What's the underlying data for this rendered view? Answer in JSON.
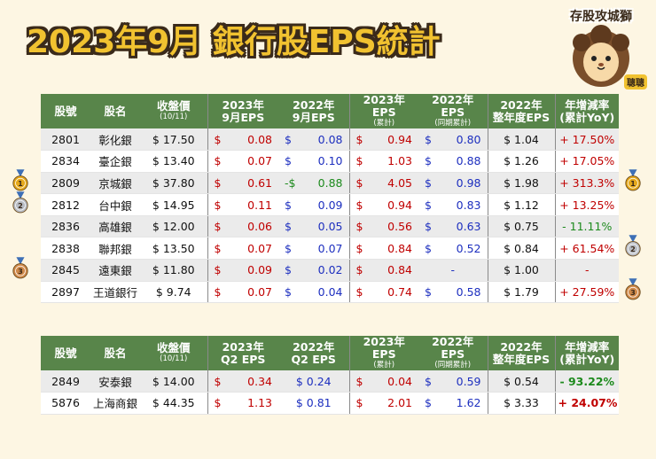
{
  "title": "2023年9月 銀行股EPS統計",
  "logo": {
    "label": "存股攻城獅",
    "name": "聰聰"
  },
  "colors": {
    "header_bg": "#58854a",
    "title_fill": "#f1c230",
    "positive": "#c00000",
    "negative": "#1d8a1d",
    "blue": "#1d2fbf"
  },
  "table1": {
    "headers": [
      {
        "main": "股號",
        "sub": ""
      },
      {
        "main": "股名",
        "sub": ""
      },
      {
        "main": "收盤價",
        "sub": "(10/11)"
      },
      {
        "main": "2023年",
        "main2": "9月EPS",
        "sub": ""
      },
      {
        "main": "2022年",
        "main2": "9月EPS",
        "sub": ""
      },
      {
        "main": "2023年EPS",
        "sub": "(累計)"
      },
      {
        "main": "2022年EPS",
        "sub": "(同期累計)"
      },
      {
        "main": "2022年",
        "main2": "整年度EPS",
        "sub": ""
      },
      {
        "main": "年增減率",
        "main2": "(累計YoY)",
        "sub": ""
      }
    ],
    "rows": [
      {
        "code": "2801",
        "name": "彰化銀",
        "price": "$ 17.50",
        "m23": [
          "$",
          "0.08"
        ],
        "m22": [
          "$",
          "0.08"
        ],
        "c23": [
          "$",
          "0.94"
        ],
        "c22": [
          "$",
          "0.80"
        ],
        "y22": "$ 1.04",
        "yoy": "+ 17.50%"
      },
      {
        "code": "2834",
        "name": "臺企銀",
        "price": "$ 13.40",
        "m23": [
          "$",
          "0.07"
        ],
        "m22": [
          "$",
          "0.10"
        ],
        "c23": [
          "$",
          "1.03"
        ],
        "c22": [
          "$",
          "0.88"
        ],
        "y22": "$ 1.26",
        "yoy": "+ 17.05%"
      },
      {
        "code": "2809",
        "name": "京城銀",
        "price": "$ 37.80",
        "m23": [
          "$",
          "0.61"
        ],
        "m22": [
          "-$",
          "0.88"
        ],
        "c23": [
          "$",
          "4.05"
        ],
        "c22": [
          "$",
          "0.98"
        ],
        "y22": "$ 1.98",
        "yoy": "+ 313.3%"
      },
      {
        "code": "2812",
        "name": "台中銀",
        "price": "$ 14.95",
        "m23": [
          "$",
          "0.11"
        ],
        "m22": [
          "$",
          "0.09"
        ],
        "c23": [
          "$",
          "0.94"
        ],
        "c22": [
          "$",
          "0.83"
        ],
        "y22": "$ 1.12",
        "yoy": "+ 13.25%"
      },
      {
        "code": "2836",
        "name": "高雄銀",
        "price": "$ 12.00",
        "m23": [
          "$",
          "0.06"
        ],
        "m22": [
          "$",
          "0.05"
        ],
        "c23": [
          "$",
          "0.56"
        ],
        "c22": [
          "$",
          "0.63"
        ],
        "y22": "$ 0.75",
        "yoy": "- 11.11%"
      },
      {
        "code": "2838",
        "name": "聯邦銀",
        "price": "$ 13.50",
        "m23": [
          "$",
          "0.07"
        ],
        "m22": [
          "$",
          "0.07"
        ],
        "c23": [
          "$",
          "0.84"
        ],
        "c22": [
          "$",
          "0.52"
        ],
        "y22": "$ 0.84",
        "yoy": "+ 61.54%"
      },
      {
        "code": "2845",
        "name": "遠東銀",
        "price": "$ 11.80",
        "m23": [
          "$",
          "0.09"
        ],
        "m22": [
          "$",
          "0.02"
        ],
        "c23": [
          "$",
          "0.84"
        ],
        "c22": [
          "",
          "-"
        ],
        "y22": "$ 1.00",
        "yoy": "-"
      },
      {
        "code": "2897",
        "name": "王道銀行",
        "price": "$ 9.74",
        "m23": [
          "$",
          "0.07"
        ],
        "m22": [
          "$",
          "0.04"
        ],
        "c23": [
          "$",
          "0.74"
        ],
        "c22": [
          "$",
          "0.58"
        ],
        "y22": "$ 1.79",
        "yoy": "+ 27.59%"
      }
    ]
  },
  "table2": {
    "headers": [
      {
        "main": "股號",
        "sub": ""
      },
      {
        "main": "股名",
        "sub": ""
      },
      {
        "main": "收盤價",
        "sub": "(10/11)"
      },
      {
        "main": "2023年",
        "main2": "Q2 EPS",
        "sub": ""
      },
      {
        "main": "2022年",
        "main2": "Q2 EPS",
        "sub": ""
      },
      {
        "main": "2023年EPS",
        "sub": "(累計)"
      },
      {
        "main": "2022年EPS",
        "sub": "(同期累計)"
      },
      {
        "main": "2022年",
        "main2": "整年度EPS",
        "sub": ""
      },
      {
        "main": "年增減率",
        "main2": "(累計YoY)",
        "sub": ""
      }
    ],
    "rows": [
      {
        "code": "2849",
        "name": "安泰銀",
        "price": "$ 14.00",
        "m23": [
          "$",
          "0.34"
        ],
        "m22": [
          "$ 0.24"
        ],
        "c23": [
          "$",
          "0.04"
        ],
        "c22": [
          "$",
          "0.59"
        ],
        "y22": "$ 0.54",
        "yoy": "- 93.22%"
      },
      {
        "code": "5876",
        "name": "上海商銀",
        "price": "$ 44.35",
        "m23": [
          "$",
          "1.13"
        ],
        "m22": [
          "$ 0.81"
        ],
        "c23": [
          "$",
          "2.01"
        ],
        "c22": [
          "$",
          "1.62"
        ],
        "y22": "$ 3.33",
        "yoy": "+ 24.07%"
      }
    ]
  },
  "medals_left": [
    {
      "rank": "1",
      "row": "2809"
    },
    {
      "rank": "2",
      "row": "2812"
    },
    {
      "rank": "3",
      "row": "2845"
    }
  ],
  "medals_right": [
    {
      "rank": "1",
      "row": "2809"
    },
    {
      "rank": "2",
      "row": "2838"
    },
    {
      "rank": "3",
      "row": "2897"
    }
  ],
  "chart_data": {
    "type": "table",
    "tables": [
      {
        "columns": [
          "股號",
          "股名",
          "收盤價(10/11)",
          "2023年9月EPS",
          "2022年9月EPS",
          "2023年EPS(累計)",
          "2022年EPS(同期累計)",
          "2022年整年度EPS",
          "年增減率(累計YoY)"
        ],
        "rows": [
          [
            "2801",
            "彰化銀",
            17.5,
            0.08,
            0.08,
            0.94,
            0.8,
            1.04,
            "+17.50%"
          ],
          [
            "2834",
            "臺企銀",
            13.4,
            0.07,
            0.1,
            1.03,
            0.88,
            1.26,
            "+17.05%"
          ],
          [
            "2809",
            "京城銀",
            37.8,
            0.61,
            -0.88,
            4.05,
            0.98,
            1.98,
            "+313.3%"
          ],
          [
            "2812",
            "台中銀",
            14.95,
            0.11,
            0.09,
            0.94,
            0.83,
            1.12,
            "+13.25%"
          ],
          [
            "2836",
            "高雄銀",
            12.0,
            0.06,
            0.05,
            0.56,
            0.63,
            0.75,
            "-11.11%"
          ],
          [
            "2838",
            "聯邦銀",
            13.5,
            0.07,
            0.07,
            0.84,
            0.52,
            0.84,
            "+61.54%"
          ],
          [
            "2845",
            "遠東銀",
            11.8,
            0.09,
            0.02,
            0.84,
            null,
            1.0,
            "-"
          ],
          [
            "2897",
            "王道銀行",
            9.74,
            0.07,
            0.04,
            0.74,
            0.58,
            1.79,
            "+27.59%"
          ]
        ]
      },
      {
        "columns": [
          "股號",
          "股名",
          "收盤價(10/11)",
          "2023年Q2 EPS",
          "2022年Q2 EPS",
          "2023年EPS(累計)",
          "2022年EPS(同期累計)",
          "2022年整年度EPS",
          "年增減率(累計YoY)"
        ],
        "rows": [
          [
            "2849",
            "安泰銀",
            14.0,
            0.34,
            0.24,
            0.04,
            0.59,
            0.54,
            "-93.22%"
          ],
          [
            "5876",
            "上海商銀",
            44.35,
            1.13,
            0.81,
            2.01,
            1.62,
            3.33,
            "+24.07%"
          ]
        ]
      }
    ]
  }
}
